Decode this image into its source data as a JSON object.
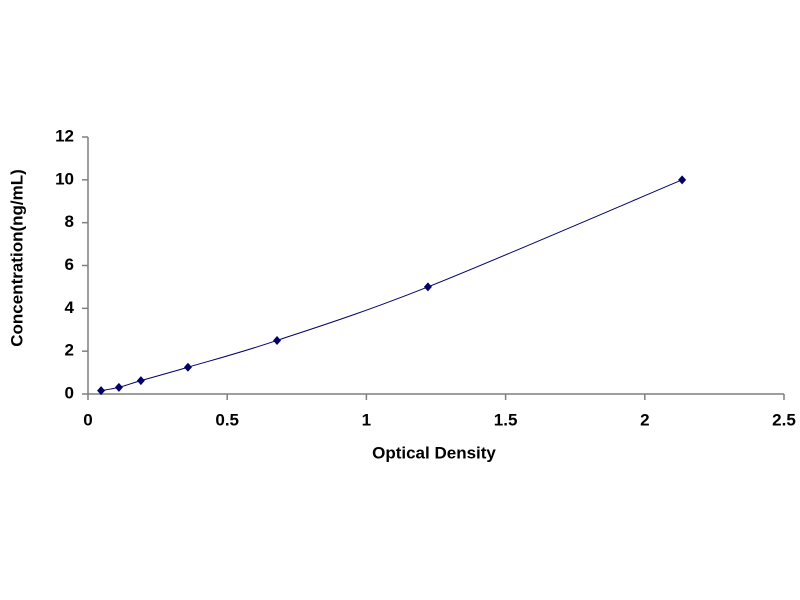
{
  "chart_data": {
    "type": "scatter",
    "x_label": "Optical Density",
    "y_label": "Concentration(ng/mL)",
    "x": [
      0.047,
      0.111,
      0.19,
      0.359,
      0.679,
      1.221,
      2.134
    ],
    "values": [
      0.156,
      0.312,
      0.625,
      1.25,
      2.5,
      5,
      10
    ],
    "color": "#000066",
    "line": true,
    "xlim": [
      0,
      2.5
    ],
    "xticks": [
      0,
      0.5,
      1,
      1.5,
      2,
      2.5
    ],
    "ylim": [
      0,
      12
    ],
    "yticks": [
      0,
      2,
      4,
      6,
      8,
      10,
      12
    ],
    "grid": false
  }
}
